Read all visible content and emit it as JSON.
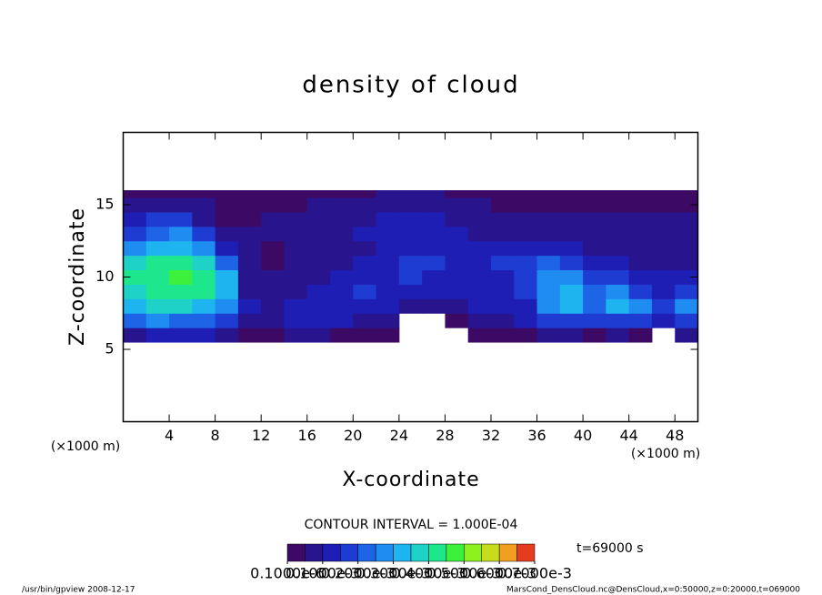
{
  "chart_data": {
    "type": "shaded",
    "title": "density of cloud",
    "xlabel": "X-coordinate",
    "ylabel": "Z-coordinate",
    "x_unit": "(×1000 m)",
    "contour_interval": "CONTOUR INTERVAL = 1.000E-04",
    "time_label": "t=69000 s",
    "footer_left": "/usr/bin/gpview   2008-12-17",
    "footer_right": "MarsCond_DensCloud.nc@DensCloud,x=0:50000,z=0:20000,t=069000",
    "xlim": [
      0,
      50
    ],
    "ylim": [
      0,
      20
    ],
    "xticks": [
      4,
      8,
      12,
      16,
      20,
      24,
      28,
      32,
      36,
      40,
      44,
      48
    ],
    "yticks": [
      5,
      10,
      15
    ],
    "x_edges": [
      0,
      2,
      4,
      6,
      8,
      10,
      12,
      14,
      16,
      18,
      20,
      22,
      24,
      26,
      28,
      30,
      32,
      34,
      36,
      38,
      40,
      42,
      44,
      46,
      48,
      50
    ],
    "z_edges": [
      5.5,
      6.5,
      7.5,
      8.5,
      9.5,
      10.5,
      11.5,
      12.5,
      13.5,
      14.5,
      15.5,
      16
    ],
    "values": [
      [
        8e-05,
        0.00012,
        0.0001,
        0.0001,
        6e-05,
        3e-05,
        4e-05,
        5e-05,
        5e-05,
        4e-05,
        3e-05,
        3e-05,
        null,
        null,
        null,
        2e-05,
        3e-05,
        4e-05,
        5e-05,
        5e-05,
        4e-05,
        5e-05,
        4e-05,
        null,
        8e-05
      ],
      [
        0.0002,
        0.00025,
        0.00022,
        0.0002,
        0.00015,
        8e-05,
        8e-05,
        0.0001,
        0.00012,
        0.0001,
        8e-05,
        6e-05,
        null,
        null,
        4e-05,
        6e-05,
        8e-05,
        0.0001,
        0.00015,
        0.00018,
        0.00015,
        0.00015,
        0.00015,
        0.00012,
        0.00015
      ],
      [
        0.00032,
        0.00035,
        0.00036,
        0.00034,
        0.00028,
        0.0001,
        8e-05,
        0.0001,
        0.00012,
        0.00013,
        0.00012,
        0.0001,
        6e-05,
        5e-05,
        8e-05,
        0.0001,
        0.00012,
        0.00014,
        0.00025,
        0.00032,
        0.0002,
        0.00032,
        0.00028,
        0.00015,
        0.00025
      ],
      [
        0.00038,
        0.0004,
        0.00042,
        0.0004,
        0.00032,
        8e-05,
        6e-05,
        8e-05,
        0.0001,
        0.00012,
        0.00015,
        0.00014,
        0.00012,
        0.0001,
        0.00012,
        0.00012,
        0.00013,
        0.00015,
        0.00028,
        0.00034,
        0.00022,
        0.00025,
        0.00018,
        0.00012,
        0.00018
      ],
      [
        0.0004,
        0.00042,
        0.00045,
        0.00042,
        0.0003,
        6e-05,
        5e-05,
        6e-05,
        8e-05,
        0.0001,
        0.00012,
        0.00014,
        0.00015,
        0.00014,
        0.00013,
        0.00012,
        0.00014,
        0.00016,
        0.00025,
        0.00028,
        0.00016,
        0.00015,
        0.00012,
        0.0001,
        0.00012
      ],
      [
        0.00035,
        0.0004,
        0.0004,
        0.00036,
        0.00022,
        5e-05,
        4e-05,
        5e-05,
        6e-05,
        8e-05,
        0.0001,
        0.00013,
        0.00015,
        0.00015,
        0.00014,
        0.00013,
        0.00015,
        0.00015,
        0.0002,
        0.00018,
        0.00012,
        0.0001,
        9e-05,
        8e-05,
        9e-05
      ],
      [
        0.00025,
        0.00032,
        0.00034,
        0.00028,
        0.00012,
        5e-05,
        4e-05,
        5e-05,
        6e-05,
        7e-05,
        9e-05,
        0.00012,
        0.00014,
        0.00014,
        0.00012,
        0.00011,
        0.0001,
        0.00012,
        0.00014,
        0.00012,
        9e-05,
        8e-05,
        7e-05,
        7e-05,
        7e-05
      ],
      [
        0.00015,
        0.00024,
        0.00028,
        0.00018,
        6e-05,
        5e-05,
        5e-05,
        6e-05,
        7e-05,
        8e-05,
        0.0001,
        0.00012,
        0.00014,
        0.00013,
        0.0001,
        9e-05,
        8e-05,
        8e-05,
        9e-05,
        8e-05,
        7e-05,
        6e-05,
        6e-05,
        6e-05,
        6e-05
      ],
      [
        0.0001,
        0.00018,
        0.00016,
        9e-05,
        4e-05,
        4e-05,
        5e-05,
        6e-05,
        7e-05,
        8e-05,
        9e-05,
        0.00011,
        0.00012,
        0.00011,
        9e-05,
        8e-05,
        7e-05,
        6e-05,
        6e-05,
        6e-05,
        5e-05,
        5e-05,
        5e-05,
        5e-05,
        5e-05
      ],
      [
        6e-05,
        8e-05,
        7e-05,
        5e-05,
        3e-05,
        3e-05,
        3e-05,
        4e-05,
        5e-05,
        5e-05,
        6e-05,
        8e-05,
        9e-05,
        8e-05,
        6e-05,
        5e-05,
        4e-05,
        4e-05,
        4e-05,
        4e-05,
        3e-05,
        3e-05,
        3e-05,
        3e-05,
        3e-05
      ],
      [
        3e-05,
        3e-05,
        3e-05,
        3e-05,
        2e-05,
        2e-05,
        3e-05,
        3e-05,
        3e-05,
        3e-05,
        4e-05,
        5e-05,
        5e-05,
        5e-05,
        4e-05,
        3e-05,
        3e-05,
        3e-05,
        3e-05,
        3e-05,
        2e-05,
        2e-05,
        2e-05,
        2e-05,
        2e-05
      ]
    ],
    "palette": [
      "#3c0a64",
      "#28148c",
      "#1e1eb4",
      "#1e3cd2",
      "#1e64e6",
      "#1e8cf0",
      "#1eb4f0",
      "#1ed2c8",
      "#1ee68c",
      "#3cf03c",
      "#8cf01e",
      "#c8dc1e",
      "#f0a01e",
      "#e63c1e"
    ],
    "colorbar_lim": [
      0,
      0.0007
    ],
    "colorbar_ticks": [
      {
        "value": 1e-07,
        "label": "0.1000e-6"
      },
      {
        "value": 0.0001,
        "label": "0.1000e-3"
      },
      {
        "value": 0.0002,
        "label": "0.2000e-3"
      },
      {
        "value": 0.0003,
        "label": "0.3000e-3"
      },
      {
        "value": 0.0004,
        "label": "0.4000e-3"
      },
      {
        "value": 0.0005,
        "label": "0.5000e-3"
      },
      {
        "value": 0.0006,
        "label": "0.6000e-3"
      },
      {
        "value": 0.0007,
        "label": "0.7000e-3"
      }
    ]
  }
}
